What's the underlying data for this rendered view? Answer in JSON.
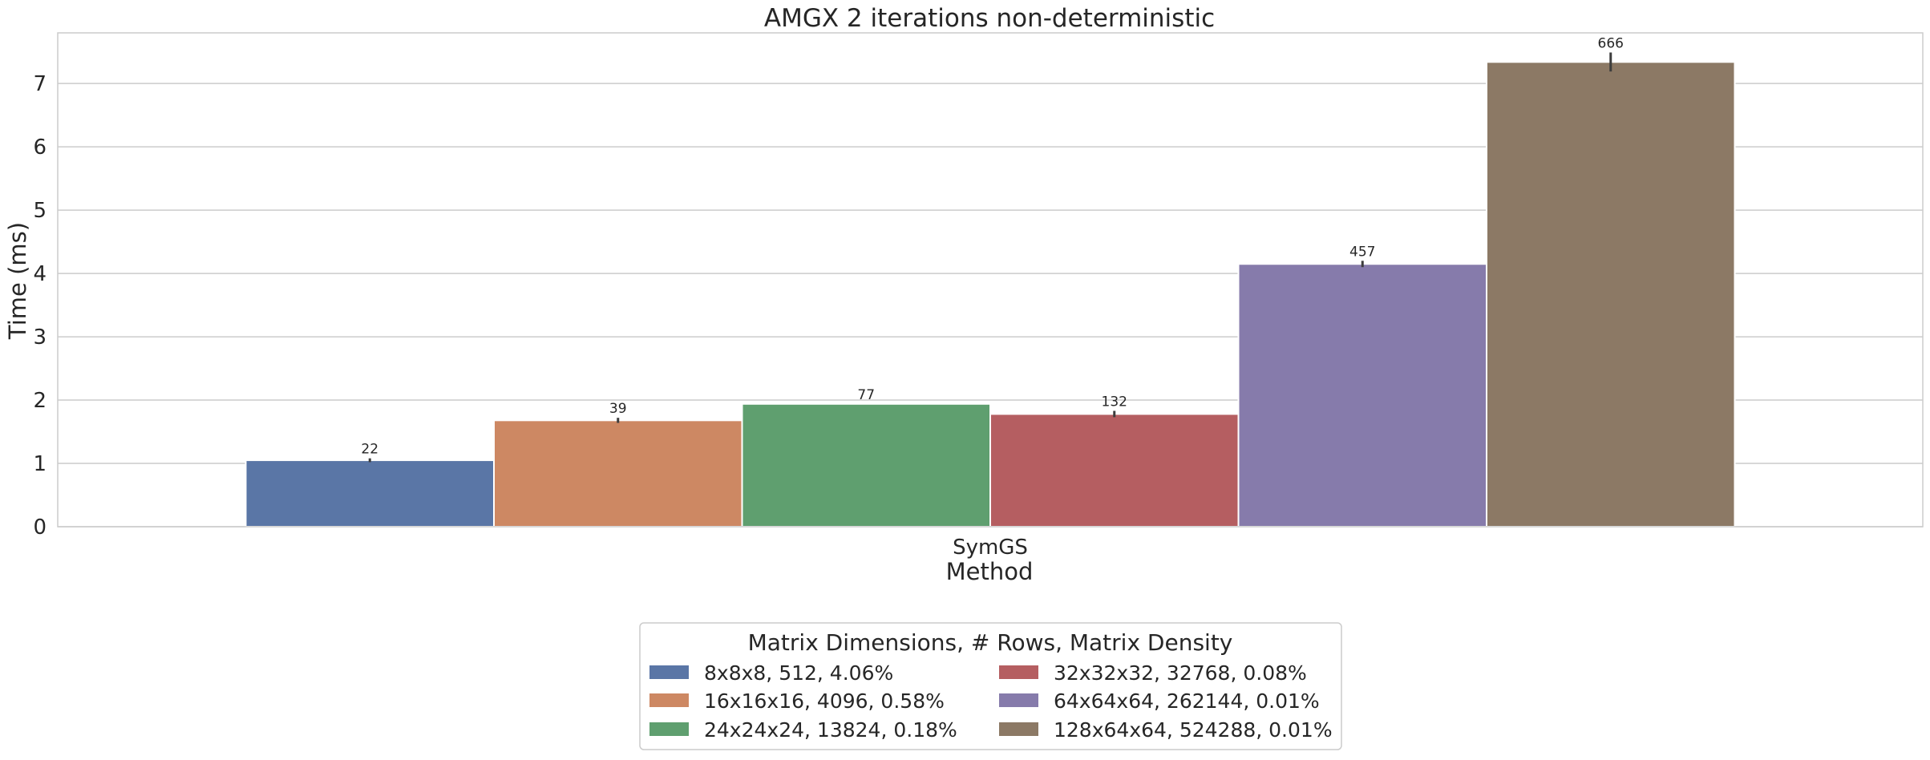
{
  "chart_data": {
    "type": "bar",
    "title": "AMGX 2 iterations non-deterministic",
    "xlabel": "Method",
    "ylabel": "Time (ms)",
    "categories": [
      "SymGS"
    ],
    "ylim": [
      0,
      7.8
    ],
    "yticks": [
      0,
      1,
      2,
      3,
      4,
      5,
      6,
      7
    ],
    "grid": true,
    "legend": {
      "title": "Matrix Dimensions, # Rows, Matrix Density",
      "placement": "bottom-center",
      "columns": 2
    },
    "series": [
      {
        "name": "8x8x8, 512, 4.06%",
        "values": [
          1.05
        ],
        "label": "22",
        "error": 0.03,
        "color": "#5a76a6"
      },
      {
        "name": "16x16x16, 4096, 0.58%",
        "values": [
          1.68
        ],
        "label": "39",
        "error": 0.04,
        "color": "#cd8863"
      },
      {
        "name": "24x24x24, 13824, 0.18%",
        "values": [
          1.94
        ],
        "label": "77",
        "error": 0.0,
        "color": "#5f9f6f"
      },
      {
        "name": "32x32x32, 32768, 0.08%",
        "values": [
          1.78
        ],
        "label": "132",
        "error": 0.05,
        "color": "#b55e61"
      },
      {
        "name": "64x64x64, 262144, 0.01%",
        "values": [
          4.15
        ],
        "label": "457",
        "error": 0.05,
        "color": "#867bab"
      },
      {
        "name": "128x64x64, 524288, 0.01%",
        "values": [
          7.34
        ],
        "label": "666",
        "error": 0.15,
        "color": "#8c7965"
      }
    ]
  }
}
